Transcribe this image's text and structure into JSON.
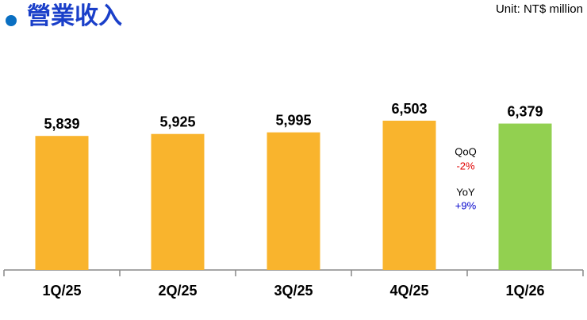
{
  "chart_data": {
    "type": "bar",
    "title": "營業收入",
    "unit": "Unit:  NT$ million",
    "categories": [
      "1Q/25",
      "2Q/25",
      "3Q/25",
      "4Q/25",
      "1Q/26"
    ],
    "values": [
      5839,
      5925,
      5995,
      6503,
      6379
    ],
    "value_labels": [
      "5,839",
      "5,925",
      "5,995",
      "6,503",
      "6,379"
    ],
    "colors": [
      "#f9b42d",
      "#f9b42d",
      "#f9b42d",
      "#f9b42d",
      "#92d050"
    ],
    "annotations": [
      {
        "text": "QoQ",
        "color": "#000000"
      },
      {
        "text": "-2%",
        "color": "#e00000"
      },
      {
        "text": "YoY",
        "color": "#000000"
      },
      {
        "text": "+9%",
        "color": "#0000cc"
      }
    ]
  }
}
